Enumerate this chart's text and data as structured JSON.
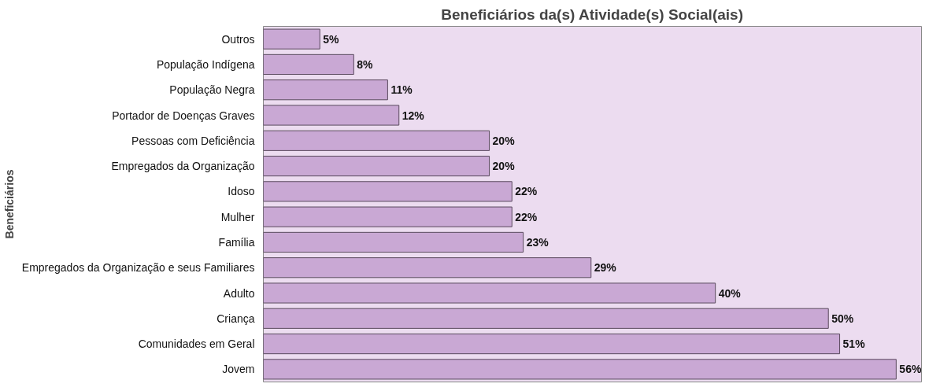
{
  "chart_data": {
    "type": "bar",
    "orientation": "horizontal",
    "title": "Beneficiários da(s) Atividade(s) Social(ais)",
    "ylabel": "Beneficiários",
    "categories": [
      "Outros",
      "População Indígena",
      "População Negra",
      "Portador de Doenças Graves",
      "Pessoas com Deficiência",
      "Empregados da Organização",
      "Idoso",
      "Mulher",
      "Família",
      "Empregados da Organização e seus Familiares",
      "Adulto",
      "Criança",
      "Comunidades em Geral",
      "Jovem"
    ],
    "series": [
      {
        "color": "#c9a8d4",
        "values": [
          5,
          8,
          11,
          12,
          20,
          20,
          22,
          22,
          23,
          29,
          40,
          50,
          51,
          56
        ],
        "value_labels": [
          "5%",
          "8%",
          "11%",
          "12%",
          "20%",
          "20%",
          "22%",
          "22%",
          "23%",
          "29%",
          "40%",
          "50%",
          "51%",
          "56%"
        ]
      }
    ],
    "tick_labels": "y",
    "grid": false
  }
}
